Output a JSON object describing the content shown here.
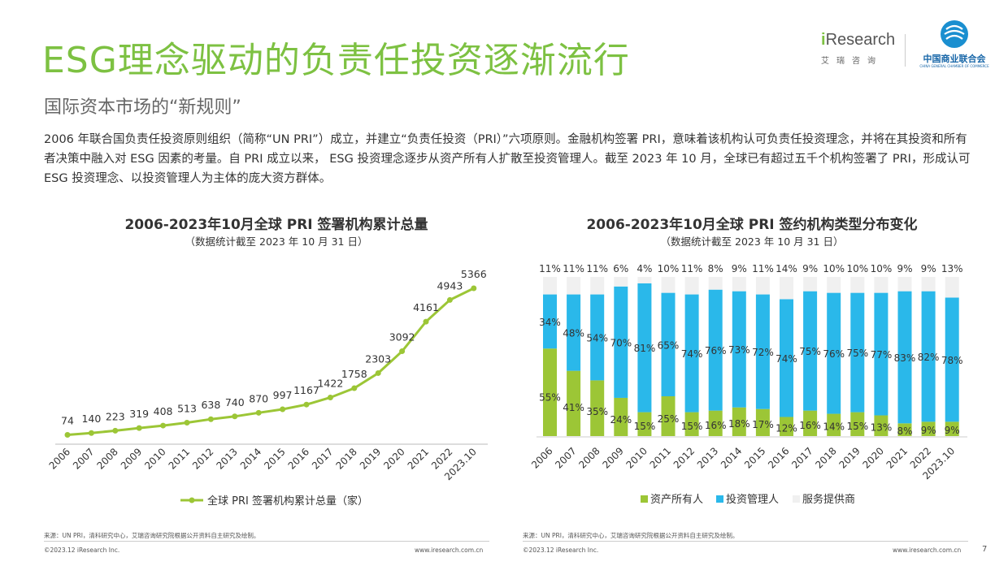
{
  "header": {
    "title": "ESG理念驱动的负责任投资逐渐流行",
    "subtitle": "国际资本市场的“新规则”",
    "intro": "2006 年联合国负责任投资原则组织（简称“UN PRI”）成立，并建立“负责任投资（PRI）”六项原则。金融机构签署 PRI，意味着该机构认可负责任投资理念，并将在其投资和所有者决策中融入对 ESG 因素的考量。自 PRI 成立以来， ESG 投资理念逐步从资产所有人扩散至投资管理人。截至 2023 年 10 月，全球已有超过五千个机构签署了 PRI，形成认可 ESG 投资理念、以投资管理人为主体的庞大资方群体。"
  },
  "logos": {
    "iresearch_word_prefix": "i",
    "iresearch_word_rest": "Research",
    "iresearch_cn": "艾瑞咨询",
    "cgcc_cn": "中国商业联合会",
    "cgcc_en": "CHINA GENERAL CHAMBER OF COMMERCE"
  },
  "colors": {
    "title_green": "#7dc142",
    "line_green": "#9cc636",
    "asset_owner": "#9cc636",
    "investment_manager": "#2ab8ea",
    "service_provider": "#f0f0f0"
  },
  "chart_data": [
    {
      "type": "line",
      "title": "2006-2023年10月全球 PRI 签署机构累计总量",
      "subtitle": "（数据统计截至 2023 年 10 月 31 日）",
      "categories": [
        "2006",
        "2007",
        "2008",
        "2009",
        "2010",
        "2011",
        "2012",
        "2013",
        "2014",
        "2015",
        "2016",
        "2017",
        "2018",
        "2019",
        "2020",
        "2021",
        "2022",
        "2023.10"
      ],
      "series": [
        {
          "name": "全球 PRI 签署机构累计总量（家）",
          "values": [
            74,
            140,
            223,
            319,
            408,
            513,
            638,
            740,
            870,
            997,
            1167,
            1422,
            1758,
            2303,
            3092,
            4161,
            4943,
            5366
          ]
        }
      ],
      "legend": "bottom",
      "grid": false
    },
    {
      "type": "bar",
      "stacked": true,
      "title": "2006-2023年10月全球 PRI 签约机构类型分布变化",
      "subtitle": "（数据统计截至 2023 年 10 月 31 日）",
      "categories": [
        "2006",
        "2007",
        "2008",
        "2009",
        "2010",
        "2011",
        "2012",
        "2013",
        "2014",
        "2015",
        "2016",
        "2017",
        "2018",
        "2019",
        "2020",
        "2021",
        "2022",
        "2023.10"
      ],
      "series": [
        {
          "name": "资产所有人",
          "values": [
            55,
            41,
            35,
            24,
            15,
            25,
            15,
            16,
            18,
            17,
            12,
            16,
            14,
            15,
            13,
            8,
            9,
            9
          ]
        },
        {
          "name": "投资管理人",
          "values": [
            34,
            48,
            54,
            70,
            81,
            65,
            74,
            76,
            73,
            72,
            74,
            75,
            76,
            75,
            77,
            83,
            82,
            78
          ]
        },
        {
          "name": "服务提供商",
          "values": [
            11,
            11,
            11,
            6,
            4,
            10,
            11,
            8,
            9,
            11,
            14,
            9,
            10,
            10,
            10,
            9,
            9,
            13
          ]
        }
      ],
      "unit": "%",
      "legend": "bottom",
      "grid": false
    }
  ],
  "footer": {
    "source_left": "来源：UN PRI，清科研究中心，艾瑞咨询研究院根据公开资料自主研究及绘制。",
    "source_right": "来源：UN PRI，清科研究中心，艾瑞咨询研究院根据公开资料自主研究及绘制。",
    "copyright_left": "©2023.12 iResearch Inc.",
    "copyright_right": "©2023.12 iResearch Inc.",
    "url_left": "www.iresearch.com.cn",
    "url_right": "www.iresearch.com.cn",
    "page": "7"
  }
}
